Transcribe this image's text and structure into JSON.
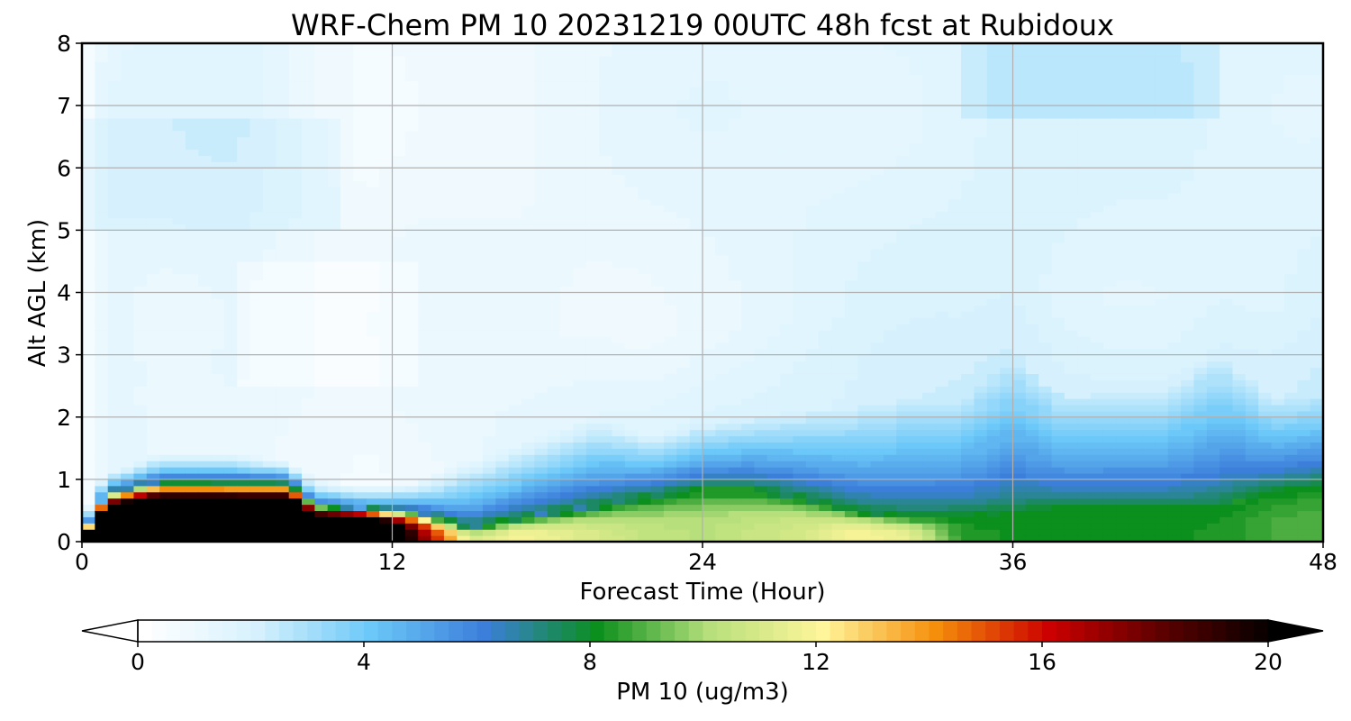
{
  "chart_data": {
    "type": "heatmap",
    "title": "WRF-Chem PM 10  20231219 00UTC 48h fcst at Rubidoux",
    "xlabel": "Forecast Time (Hour)",
    "ylabel": "Alt AGL (km)",
    "xlim": [
      0,
      48
    ],
    "ylim": [
      0,
      8
    ],
    "xticks": [
      0,
      12,
      24,
      36,
      48
    ],
    "yticks": [
      0,
      1,
      2,
      3,
      4,
      5,
      6,
      7,
      8
    ],
    "grid": true,
    "colorbar": {
      "label": "PM 10  (ug/m3)",
      "range": [
        0,
        20
      ],
      "ticks": [
        0,
        4,
        8,
        12,
        16,
        20
      ],
      "extend": "both",
      "levels": 80,
      "colors": [
        "#ffffff",
        "#d6f1fd",
        "#6bc8f8",
        "#3c7fdb",
        "#0b8f1d",
        "#b7e07c",
        "#fff59a",
        "#f58e0a",
        "#cc0000",
        "#5c0000",
        "#000000"
      ]
    },
    "x": [
      0,
      0.5,
      1,
      3,
      6,
      8,
      9,
      11,
      13,
      15,
      17,
      20,
      22,
      24,
      26,
      28,
      30,
      32,
      34,
      36,
      38,
      40,
      42,
      44,
      46,
      48
    ],
    "y": [
      0,
      0.2,
      0.4,
      0.6,
      0.8,
      1.0,
      1.2,
      1.4,
      1.6,
      1.8,
      2.0,
      2.3,
      2.6,
      3.0,
      3.5,
      4.0,
      4.5,
      5.0,
      5.5,
      6.0,
      6.5,
      7.0,
      7.5,
      8.0
    ],
    "bottom_profile": [
      18,
      30,
      30,
      30,
      30,
      30,
      30,
      30,
      18,
      11,
      12,
      11,
      10.4,
      10.2,
      10.6,
      11,
      12,
      11.5,
      8.4,
      8.2,
      8.2,
      8.2,
      8.2,
      8.3,
      8.8,
      9.0
    ],
    "mixing_height_km": [
      0.1,
      0.5,
      0.8,
      1.0,
      1.0,
      1.0,
      0.6,
      0.55,
      0.5,
      0.25,
      0.4,
      0.6,
      0.75,
      0.85,
      0.85,
      0.7,
      0.5,
      0.4,
      0.4,
      0.5,
      0.55,
      0.55,
      0.55,
      0.55,
      0.8,
      0.9
    ],
    "upper_layer_ug_m3": [
      0.8,
      1.5,
      1.8,
      1.3,
      0.9,
      0.7,
      1.0,
      1.2,
      1.7,
      2.8,
      3.3,
      3.8,
      4.2,
      4.6,
      4.5,
      4.3,
      4.2,
      4.5,
      4.8,
      5.0,
      5.0,
      5.0,
      5.0,
      5.0,
      5.0,
      5.0
    ],
    "upper_layer_top_km": [
      0.3,
      0.9,
      1.1,
      1.4,
      1.4,
      1.3,
      1.0,
      0.9,
      0.95,
      1.3,
      1.6,
      2.0,
      1.7,
      1.9,
      2.0,
      2.1,
      2.2,
      2.3,
      2.3,
      2.9,
      2.3,
      2.4,
      2.4,
      3.0,
      2.3,
      2.4
    ],
    "free_trop_ug_m3": [
      0.4,
      1.0,
      1.4,
      1.4,
      1.5,
      1.2,
      1.0,
      0.8,
      1.0,
      1.0,
      1.0,
      1.1,
      1.2,
      1.3,
      1.4,
      1.5,
      1.6,
      1.7,
      1.8,
      1.9,
      1.8,
      1.7,
      1.7,
      1.6,
      1.6,
      1.7
    ]
  }
}
